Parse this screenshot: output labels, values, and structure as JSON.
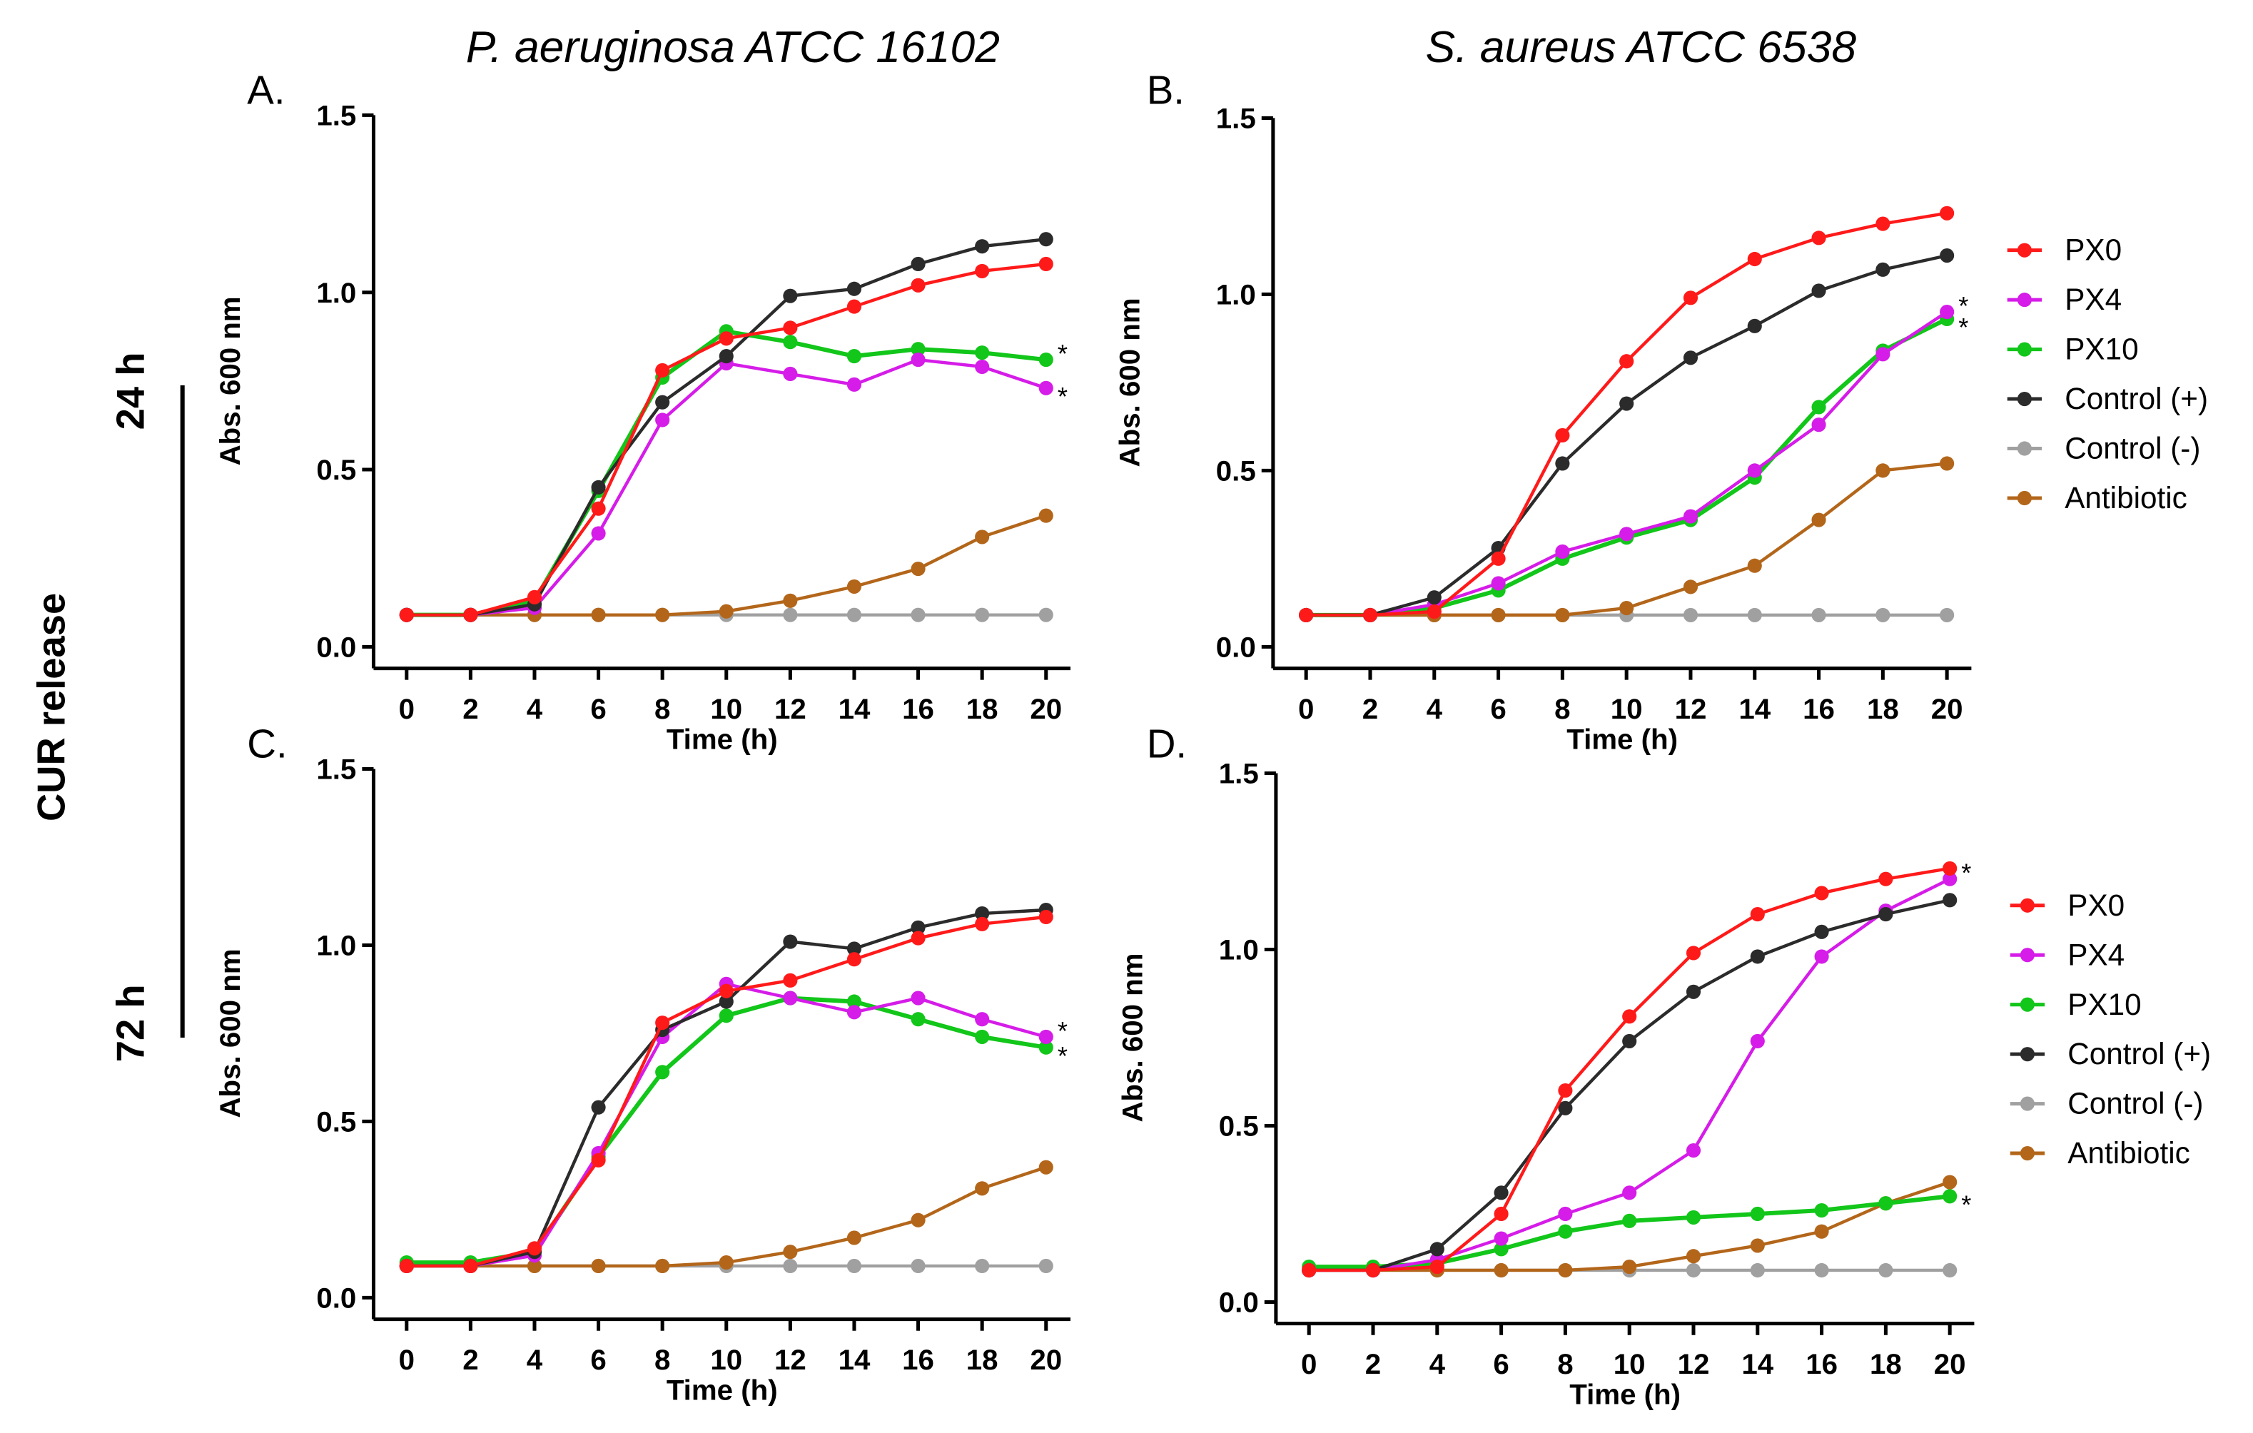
{
  "figure": {
    "left_label": "CUR release",
    "row_labels": [
      "24 h",
      "72 h"
    ],
    "column_titles": [
      "P. aeruginosa ATCC 16102",
      "S. aureus ATCC 6538"
    ]
  },
  "legend": {
    "entries": [
      "PX0",
      "PX4",
      "PX10",
      "Control (+)",
      "Control (-)",
      "Antibiotic"
    ],
    "colors": [
      "#ff1a1a",
      "#d51ce8",
      "#12c61a",
      "#2b2b2b",
      "#a0a0a0",
      "#b3661a"
    ]
  },
  "chart_data": [
    {
      "type": "line",
      "panel": "A.",
      "title": "P. aeruginosa ATCC 16102",
      "row": "24 h",
      "xlabel": "Time (h)",
      "ylabel": "Abs. 600 nm",
      "xlim": [
        0,
        20
      ],
      "ylim": [
        0,
        1.5
      ],
      "xticks": [
        "0",
        "2",
        "4",
        "6",
        "8",
        "10",
        "12",
        "14",
        "16",
        "18",
        "20"
      ],
      "yticks": [
        "0.0",
        "0.5",
        "1.0",
        "1.5"
      ],
      "x": [
        0,
        2,
        4,
        6,
        8,
        10,
        12,
        14,
        16,
        18,
        20
      ],
      "series": [
        {
          "name": "PX0",
          "values": [
            0.09,
            0.09,
            0.14,
            0.39,
            0.78,
            0.87,
            0.9,
            0.96,
            1.02,
            1.06,
            1.08
          ]
        },
        {
          "name": "PX4",
          "values": [
            0.09,
            0.09,
            0.11,
            0.32,
            0.64,
            0.8,
            0.77,
            0.74,
            0.81,
            0.79,
            0.73
          ]
        },
        {
          "name": "PX10",
          "values": [
            0.09,
            0.09,
            0.13,
            0.44,
            0.76,
            0.89,
            0.86,
            0.82,
            0.84,
            0.83,
            0.81
          ]
        },
        {
          "name": "Control (+)",
          "values": [
            0.09,
            0.09,
            0.12,
            0.45,
            0.69,
            0.82,
            0.99,
            1.01,
            1.08,
            1.13,
            1.15
          ]
        },
        {
          "name": "Control (-)",
          "values": [
            0.09,
            0.09,
            0.09,
            0.09,
            0.09,
            0.09,
            0.09,
            0.09,
            0.09,
            0.09,
            0.09
          ]
        },
        {
          "name": "Antibiotic",
          "values": [
            0.09,
            0.09,
            0.09,
            0.09,
            0.09,
            0.1,
            0.13,
            0.17,
            0.22,
            0.31,
            0.37
          ]
        }
      ],
      "annotations": [
        {
          "text": "*",
          "series": "PX10",
          "x": 20
        },
        {
          "text": "*",
          "series": "PX4",
          "x": 20
        }
      ],
      "show_legend": false
    },
    {
      "type": "line",
      "panel": "B.",
      "title": "S. aureus ATCC 6538",
      "row": "24 h",
      "xlabel": "Time (h)",
      "ylabel": "Abs. 600 nm",
      "xlim": [
        0,
        20
      ],
      "ylim": [
        0,
        1.5
      ],
      "xticks": [
        "0",
        "2",
        "4",
        "6",
        "8",
        "10",
        "12",
        "14",
        "16",
        "18",
        "20"
      ],
      "yticks": [
        "0.0",
        "0.5",
        "1.0",
        "1.5"
      ],
      "x": [
        0,
        2,
        4,
        6,
        8,
        10,
        12,
        14,
        16,
        18,
        20
      ],
      "series": [
        {
          "name": "PX0",
          "values": [
            0.09,
            0.09,
            0.1,
            0.25,
            0.6,
            0.81,
            0.99,
            1.1,
            1.16,
            1.2,
            1.23
          ]
        },
        {
          "name": "PX4",
          "values": [
            0.09,
            0.09,
            0.12,
            0.18,
            0.27,
            0.32,
            0.37,
            0.5,
            0.63,
            0.83,
            0.95
          ]
        },
        {
          "name": "PX10",
          "values": [
            0.09,
            0.09,
            0.11,
            0.16,
            0.25,
            0.31,
            0.36,
            0.48,
            0.68,
            0.84,
            0.93
          ]
        },
        {
          "name": "Control (+)",
          "values": [
            0.09,
            0.09,
            0.14,
            0.28,
            0.52,
            0.69,
            0.82,
            0.91,
            1.01,
            1.07,
            1.11
          ]
        },
        {
          "name": "Control (-)",
          "values": [
            0.09,
            0.09,
            0.09,
            0.09,
            0.09,
            0.09,
            0.09,
            0.09,
            0.09,
            0.09,
            0.09
          ]
        },
        {
          "name": "Antibiotic",
          "values": [
            0.09,
            0.09,
            0.09,
            0.09,
            0.09,
            0.11,
            0.17,
            0.23,
            0.36,
            0.5,
            0.52
          ]
        }
      ],
      "annotations": [
        {
          "text": "*",
          "series": "PX4",
          "x": 20
        },
        {
          "text": "*",
          "series": "PX10",
          "x": 20
        }
      ],
      "show_legend": true
    },
    {
      "type": "line",
      "panel": "C.",
      "title": "P. aeruginosa ATCC 16102",
      "row": "72 h",
      "xlabel": "Time (h)",
      "ylabel": "Abs. 600 nm",
      "xlim": [
        0,
        20
      ],
      "ylim": [
        0,
        1.5
      ],
      "xticks": [
        "0",
        "2",
        "4",
        "6",
        "8",
        "10",
        "12",
        "14",
        "16",
        "18",
        "20"
      ],
      "yticks": [
        "0.0",
        "0.5",
        "1.0",
        "1.5"
      ],
      "x": [
        0,
        2,
        4,
        6,
        8,
        10,
        12,
        14,
        16,
        18,
        20
      ],
      "series": [
        {
          "name": "PX0",
          "values": [
            0.09,
            0.09,
            0.14,
            0.39,
            0.78,
            0.87,
            0.9,
            0.96,
            1.02,
            1.06,
            1.08
          ]
        },
        {
          "name": "PX4",
          "values": [
            0.09,
            0.09,
            0.12,
            0.41,
            0.74,
            0.89,
            0.85,
            0.81,
            0.85,
            0.79,
            0.74
          ]
        },
        {
          "name": "PX10",
          "values": [
            0.1,
            0.1,
            0.13,
            0.4,
            0.64,
            0.8,
            0.85,
            0.84,
            0.79,
            0.74,
            0.71
          ]
        },
        {
          "name": "Control (+)",
          "values": [
            0.09,
            0.09,
            0.13,
            0.54,
            0.76,
            0.84,
            1.01,
            0.99,
            1.05,
            1.09,
            1.1
          ]
        },
        {
          "name": "Control (-)",
          "values": [
            0.09,
            0.09,
            0.09,
            0.09,
            0.09,
            0.09,
            0.09,
            0.09,
            0.09,
            0.09,
            0.09
          ]
        },
        {
          "name": "Antibiotic",
          "values": [
            0.09,
            0.09,
            0.09,
            0.09,
            0.09,
            0.1,
            0.13,
            0.17,
            0.22,
            0.31,
            0.37
          ]
        }
      ],
      "annotations": [
        {
          "text": "*",
          "series": "PX4",
          "x": 20
        },
        {
          "text": "*",
          "series": "PX10",
          "x": 20
        }
      ],
      "show_legend": false
    },
    {
      "type": "line",
      "panel": "D.",
      "title": "S. aureus ATCC 6538",
      "row": "72 h",
      "xlabel": "Time (h)",
      "ylabel": "Abs. 600 nm",
      "xlim": [
        0,
        20
      ],
      "ylim": [
        0,
        1.5
      ],
      "xticks": [
        "0",
        "2",
        "4",
        "6",
        "8",
        "10",
        "12",
        "14",
        "16",
        "18",
        "20"
      ],
      "yticks": [
        "0.0",
        "0.5",
        "1.0",
        "1.5"
      ],
      "x": [
        0,
        2,
        4,
        6,
        8,
        10,
        12,
        14,
        16,
        18,
        20
      ],
      "series": [
        {
          "name": "PX0",
          "values": [
            0.09,
            0.09,
            0.1,
            0.25,
            0.6,
            0.81,
            0.99,
            1.1,
            1.16,
            1.2,
            1.23
          ]
        },
        {
          "name": "PX4",
          "values": [
            0.09,
            0.09,
            0.12,
            0.18,
            0.25,
            0.31,
            0.43,
            0.74,
            0.98,
            1.11,
            1.2
          ]
        },
        {
          "name": "PX10",
          "values": [
            0.1,
            0.1,
            0.11,
            0.15,
            0.2,
            0.23,
            0.24,
            0.25,
            0.26,
            0.28,
            0.3
          ]
        },
        {
          "name": "Control (+)",
          "values": [
            0.09,
            0.09,
            0.15,
            0.31,
            0.55,
            0.74,
            0.88,
            0.98,
            1.05,
            1.1,
            1.14
          ]
        },
        {
          "name": "Control (-)",
          "values": [
            0.09,
            0.09,
            0.09,
            0.09,
            0.09,
            0.09,
            0.09,
            0.09,
            0.09,
            0.09,
            0.09
          ]
        },
        {
          "name": "Antibiotic",
          "values": [
            0.09,
            0.09,
            0.09,
            0.09,
            0.09,
            0.1,
            0.13,
            0.16,
            0.2,
            0.28,
            0.34
          ]
        }
      ],
      "annotations": [
        {
          "text": "*",
          "series": "PX4",
          "x": 20
        },
        {
          "text": "*",
          "series": "PX10",
          "x": 20
        }
      ],
      "show_legend": true
    }
  ]
}
